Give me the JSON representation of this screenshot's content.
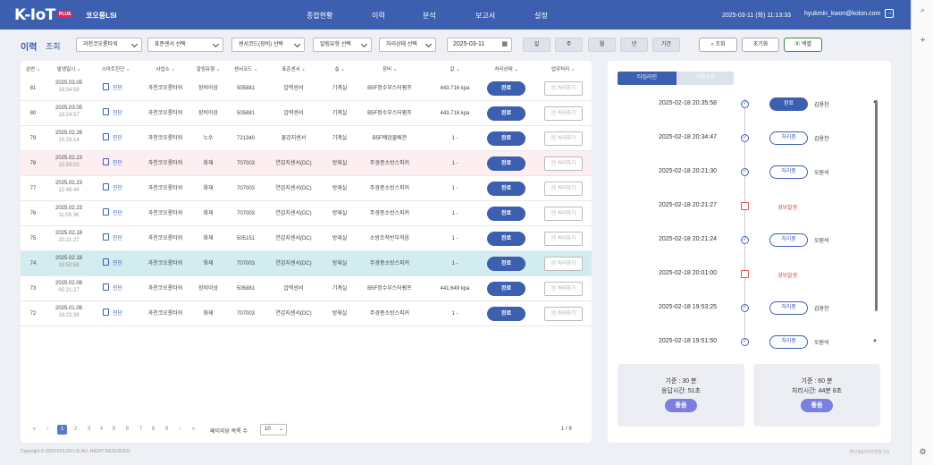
{
  "header": {
    "logo": "K-IoT",
    "logo_badge": "PLUS",
    "company": "코오롱LSI",
    "nav": [
      "종합현황",
      "이력",
      "분석",
      "보고서",
      "설정"
    ],
    "datetime": "2025-03-11 (화) 11:13:33",
    "user": "hyukmin_kwon@kolon.com"
  },
  "page": {
    "title": "이력",
    "subtitle": "조회"
  },
  "filters": {
    "building": "과천코오롱타워",
    "sensor_type": "표준센서 선택",
    "sensor_code": "센서코드(장비) 선택",
    "alarm_type": "알림유형 선택",
    "process_status": "처리상태 선택",
    "date": "2025-03-11",
    "periods": [
      "일",
      "주",
      "월",
      "년",
      "기간"
    ],
    "search": "조회",
    "reset": "초기화",
    "excel": "엑셀"
  },
  "table": {
    "columns": [
      "순번",
      "발생일시",
      "스마트진단",
      "사업소",
      "알림유형",
      "센서코드",
      "표준센서",
      "실",
      "장비",
      "값",
      "처리상태",
      "업무처리"
    ],
    "diag_label": "진단",
    "proc_label": "처리하기",
    "rows": [
      {
        "no": "81",
        "date": "2025.03.05",
        "time": "18:34:59",
        "site": "과천코오롱타워",
        "alarm": "장비이상",
        "code": "505881",
        "sensor": "압력센서",
        "room": "기계실",
        "device": "B5F정수부스터펌프",
        "value": "443.716 kpa",
        "status": "완료",
        "hl": ""
      },
      {
        "no": "80",
        "date": "2025.03.05",
        "time": "18:24:57",
        "site": "과천코오롱타워",
        "alarm": "장비이상",
        "code": "505881",
        "sensor": "압력센서",
        "room": "기계실",
        "device": "B5F정수부스터펌프",
        "value": "443.716 kpa",
        "status": "완료",
        "hl": ""
      },
      {
        "no": "79",
        "date": "2025.02.26",
        "time": "15:29:14",
        "site": "과천코오롱타워",
        "alarm": "누수",
        "code": "721340",
        "sensor": "물감지센서",
        "room": "기계실",
        "device": "B5F배암물배관",
        "value": "1 -",
        "status": "완료",
        "hl": ""
      },
      {
        "no": "78",
        "date": "2025.02.23",
        "time": "15:59:03",
        "site": "과천코오롱타워",
        "alarm": "화재",
        "code": "707003",
        "sensor": "연감지센서(DC)",
        "room": "방재실",
        "device": "주경종소방스피커",
        "value": "1 -",
        "status": "완료",
        "hl": "pink"
      },
      {
        "no": "77",
        "date": "2025.02.23",
        "time": "12:48:44",
        "site": "과천코오롱타워",
        "alarm": "화재",
        "code": "707003",
        "sensor": "연감지센서(DC)",
        "room": "방재실",
        "device": "주경종소방스피커",
        "value": "1 -",
        "status": "완료",
        "hl": ""
      },
      {
        "no": "76",
        "date": "2025.02.23",
        "time": "11:05:36",
        "site": "과천코오롱타워",
        "alarm": "화재",
        "code": "707003",
        "sensor": "연감지센서(DC)",
        "room": "방재실",
        "device": "주경종소방스피커",
        "value": "1 -",
        "status": "완료",
        "hl": ""
      },
      {
        "no": "75",
        "date": "2025.02.18",
        "time": "20:21:27",
        "site": "과천코오롱타워",
        "alarm": "화재",
        "code": "505151",
        "sensor": "연감지센서(DC)",
        "room": "방재실",
        "device": "소방조작반부저음",
        "value": "1 -",
        "status": "완료",
        "hl": ""
      },
      {
        "no": "74",
        "date": "2025.02.18",
        "time": "19:50:58",
        "site": "과천코오롱타워",
        "alarm": "화재",
        "code": "707003",
        "sensor": "연감지센서(DC)",
        "room": "방재실",
        "device": "주경종소방스피커",
        "value": "1 -",
        "status": "완료",
        "hl": "cyan"
      },
      {
        "no": "73",
        "date": "2025.02.08",
        "time": "05:21:27",
        "site": "과천코오롱타워",
        "alarm": "장비이상",
        "code": "505881",
        "sensor": "압력센서",
        "room": "기계실",
        "device": "B5F정수부스터펌프",
        "value": "441.649 kpa",
        "status": "완료",
        "hl": ""
      },
      {
        "no": "72",
        "date": "2025.01.08",
        "time": "19:23:39",
        "site": "과천코오롱타워",
        "alarm": "화재",
        "code": "707003",
        "sensor": "연감지센서(DC)",
        "room": "방재실",
        "device": "주경종소방스피커",
        "value": "1 -",
        "status": "완료",
        "hl": ""
      }
    ]
  },
  "pagination": {
    "pages": [
      "1",
      "2",
      "3",
      "4",
      "5",
      "6",
      "7",
      "8",
      "9"
    ],
    "current": "1",
    "rows_label": "페이지당 목록 수",
    "rows_per_page": "10",
    "page_count": "1 / 9"
  },
  "timeline": {
    "tabs": [
      "타임라인",
      "티켓조회"
    ],
    "events": [
      {
        "time": "2025-02-18 20:35:58",
        "kind": "check",
        "badge": "완료",
        "done": true,
        "name": "김용찬"
      },
      {
        "time": "2025-02-18 20:34:47",
        "kind": "check",
        "badge": "처리중",
        "done": false,
        "name": "김용찬"
      },
      {
        "time": "2025-02-18 20:21:30",
        "kind": "check",
        "badge": "처리중",
        "done": false,
        "name": "오원석"
      },
      {
        "time": "2025-02-18 20:21:27",
        "kind": "alarm",
        "badge": "경보발생",
        "done": false,
        "name": ""
      },
      {
        "time": "2025-02-18 20:21:24",
        "kind": "check",
        "badge": "처리중",
        "done": false,
        "name": "오원석"
      },
      {
        "time": "2025-02-18 20:01:00",
        "kind": "alarm",
        "badge": "경보발생",
        "done": false,
        "name": ""
      },
      {
        "time": "2025-02-18 19:53:25",
        "kind": "check",
        "badge": "처리중",
        "done": false,
        "name": "김용찬"
      },
      {
        "time": "2025-02-18 19:51:50",
        "kind": "check",
        "badge": "처리중",
        "done": false,
        "name": "오원석"
      }
    ],
    "cards": [
      {
        "line1": "기준 : 30 분",
        "line2": "응답시간: 51초",
        "grade": "좋음"
      },
      {
        "line1": "기준 : 60 분",
        "line2": "처리시간: 44분 8초",
        "grade": "좋음"
      }
    ]
  },
  "footer": {
    "copyright": "Copyright © 2024 KOLON LSI ALL RIGHT RESERVED.",
    "right": "개인정보처리방침 3.6"
  },
  "colors": {
    "primary": "#3d5fb0",
    "alarm": "#e04040",
    "good": "#7b7fe0",
    "pink_row": "#fdeff1",
    "cyan_row": "#d3ecef"
  }
}
